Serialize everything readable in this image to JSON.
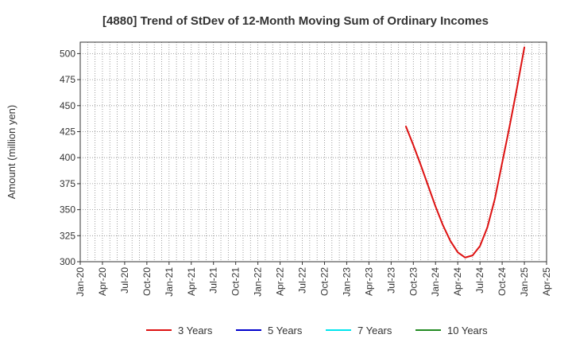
{
  "chart_data": {
    "type": "line",
    "title": "[4880]  Trend of StDev of 12-Month Moving Sum of Ordinary Incomes",
    "ylabel": "Amount (million yen)",
    "xlabel": "",
    "x_ticks": [
      "Jan-20",
      "Apr-20",
      "Jul-20",
      "Oct-20",
      "Jan-21",
      "Apr-21",
      "Jul-21",
      "Oct-21",
      "Jan-22",
      "Apr-22",
      "Jul-22",
      "Oct-22",
      "Jan-23",
      "Apr-23",
      "Jul-23",
      "Oct-23",
      "Jan-24",
      "Apr-24",
      "Jul-24",
      "Oct-24",
      "Jan-25",
      "Apr-25"
    ],
    "y_ticks": [
      300,
      325,
      350,
      375,
      400,
      425,
      450,
      475,
      500
    ],
    "ylim": [
      300,
      511
    ],
    "grid": true,
    "legend_position": "bottom",
    "series": [
      {
        "name": "3 Years",
        "color": "#dd1111",
        "points": [
          [
            "Sep-23",
            430
          ],
          [
            "Oct-23",
            412
          ],
          [
            "Nov-23",
            393
          ],
          [
            "Dec-23",
            373
          ],
          [
            "Jan-24",
            353
          ],
          [
            "Feb-24",
            335
          ],
          [
            "Mar-24",
            320
          ],
          [
            "Apr-24",
            309
          ],
          [
            "May-24",
            304
          ],
          [
            "Jun-24",
            306
          ],
          [
            "Jul-24",
            315
          ],
          [
            "Aug-24",
            333
          ],
          [
            "Sep-24",
            360
          ],
          [
            "Oct-24",
            395
          ],
          [
            "Nov-24",
            430
          ],
          [
            "Dec-24",
            467
          ],
          [
            "Jan-25",
            506
          ]
        ]
      },
      {
        "name": "5 Years",
        "color": "#0000cc",
        "points": []
      },
      {
        "name": "7 Years",
        "color": "#00e5ee",
        "points": []
      },
      {
        "name": "10 Years",
        "color": "#228b22",
        "points": []
      }
    ]
  }
}
